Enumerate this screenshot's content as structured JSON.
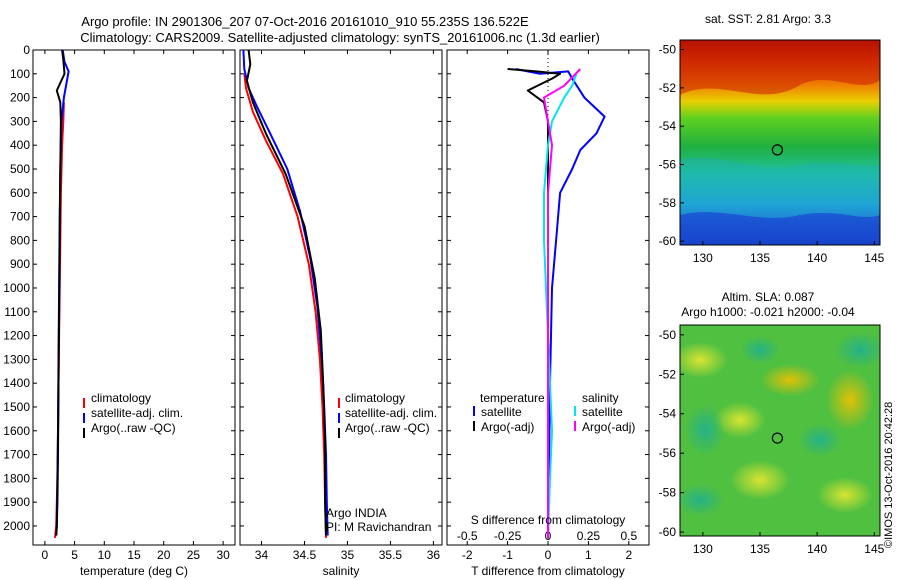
{
  "header": {
    "title_line1": "Argo profile: IN 2901306_207 07-Oct-2016 20161010_910 55.235S 136.522E",
    "title_line2": "Climatology: CARS2009. Satellite-adjusted climatology: synTS_20161006.nc (1.3d earlier)"
  },
  "credit": "©IMOS 13-Oct-2016 20:42:28",
  "colors": {
    "climatology": "#ff0000",
    "satellite": "#0000ff",
    "argo": "#000000",
    "salinity_satellite": "#00e5ee",
    "salinity_argo": "#ff00ff"
  },
  "chart_data": [
    {
      "id": "temperature",
      "type": "line",
      "xlabel": "temperature (deg C)",
      "xlim": [
        -2,
        32
      ],
      "xticks": [
        0,
        5,
        10,
        15,
        20,
        25,
        30
      ],
      "ylim": [
        0,
        2080
      ],
      "yticks": [
        0,
        100,
        200,
        300,
        400,
        500,
        600,
        700,
        800,
        900,
        1000,
        1100,
        1200,
        1300,
        1400,
        1500,
        1600,
        1700,
        1800,
        1900,
        2000
      ],
      "legend": [
        {
          "label": "climatology",
          "color": "#ff0000"
        },
        {
          "label": "satellite-adj. clim.",
          "color": "#0000ff"
        },
        {
          "label": "Argo(..raw -QC)",
          "color": "#000000"
        }
      ],
      "series": [
        {
          "name": "climatology",
          "color": "#ff0000",
          "x": [
            3.2,
            3.1,
            2.9,
            2.7,
            2.6,
            2.5,
            2.4,
            2.3,
            2.2,
            2.1,
            2.0,
            1.9,
            1.7
          ],
          "y": [
            220,
            300,
            400,
            600,
            800,
            1000,
            1200,
            1400,
            1600,
            1800,
            1900,
            2000,
            2050
          ]
        },
        {
          "name": "satellite-adj. clim.",
          "color": "#0000ff",
          "x": [
            3.0,
            3.3,
            4.0,
            3.2,
            2.8,
            2.6,
            2.5,
            2.4,
            2.3,
            2.2,
            2.1,
            2.0,
            1.9
          ],
          "y": [
            0,
            50,
            90,
            200,
            300,
            500,
            700,
            1000,
            1300,
            1600,
            1800,
            2000,
            2040
          ]
        },
        {
          "name": "Argo(..raw -QC)",
          "color": "#000000",
          "x": [
            2.9,
            3.1,
            3.3,
            2.0,
            2.6,
            2.7,
            2.6,
            2.5,
            2.4,
            2.3,
            2.2,
            2.1,
            2.0,
            1.9
          ],
          "y": [
            0,
            40,
            100,
            170,
            220,
            300,
            500,
            800,
            1100,
            1400,
            1700,
            1900,
            2000,
            2040
          ]
        }
      ]
    },
    {
      "id": "salinity",
      "type": "line",
      "xlabel": "salinity",
      "xlim": [
        33.75,
        36.1
      ],
      "xticks": [
        34,
        34.5,
        35,
        35.5,
        36
      ],
      "ylim": [
        0,
        2080
      ],
      "legend": [
        {
          "label": "climatology",
          "color": "#ff0000"
        },
        {
          "label": "satellite-adj. clim.",
          "color": "#0000ff"
        },
        {
          "label": "Argo(..raw -QC)",
          "color": "#000000"
        }
      ],
      "annotations": [
        "Argo INDIA",
        "PI: M Ravichandran"
      ],
      "series": [
        {
          "name": "climatology",
          "color": "#ff0000",
          "x": [
            33.8,
            33.82,
            33.9,
            34.05,
            34.25,
            34.42,
            34.55,
            34.63,
            34.68,
            34.71,
            34.73,
            34.74,
            34.75
          ],
          "y": [
            100,
            160,
            260,
            380,
            520,
            700,
            900,
            1100,
            1300,
            1500,
            1700,
            1900,
            2050
          ]
        },
        {
          "name": "satellite-adj. clim.",
          "color": "#0000ff",
          "x": [
            33.79,
            33.8,
            33.85,
            33.95,
            34.1,
            34.3,
            34.45,
            34.57,
            34.65,
            34.7,
            34.73,
            34.75,
            34.76,
            34.77
          ],
          "y": [
            0,
            80,
            160,
            240,
            350,
            500,
            680,
            880,
            1080,
            1300,
            1500,
            1700,
            1900,
            2040
          ]
        },
        {
          "name": "Argo(..raw -QC)",
          "color": "#000000",
          "x": [
            33.85,
            33.87,
            33.83,
            33.9,
            34.05,
            34.28,
            34.5,
            34.62,
            34.69,
            34.72,
            34.74,
            34.74,
            34.75
          ],
          "y": [
            0,
            60,
            130,
            220,
            350,
            520,
            740,
            960,
            1180,
            1420,
            1660,
            1900,
            2040
          ]
        }
      ]
    },
    {
      "id": "difference",
      "type": "line",
      "xlabel": "T difference from climatology",
      "xlabel2": "S difference from climatology",
      "xlim": [
        -2.5,
        2.5
      ],
      "xticks_T": [
        -2,
        -1,
        0,
        1,
        2
      ],
      "xticks_S": [
        "-0.5",
        "-0.25",
        "0",
        "0.25",
        "0.5"
      ],
      "xticks_S_pos": [
        -2,
        -1,
        0,
        1,
        2
      ],
      "ylim": [
        0,
        2080
      ],
      "legend": {
        "temperature": {
          "title": "temperature",
          "items": [
            {
              "label": "satellite",
              "color": "#0000ff"
            },
            {
              "label": "Argo(-adj)",
              "color": "#000000"
            }
          ]
        },
        "salinity": {
          "title": "salinity",
          "items": [
            {
              "label": "satellite",
              "color": "#00e5ee"
            },
            {
              "label": "Argo(-adj)",
              "color": "#ff00ff"
            }
          ]
        }
      },
      "series": [
        {
          "name": "temperature satellite",
          "color": "#0000ff",
          "x": [
            -0.8,
            -0.2,
            0.5,
            0.6,
            0.9,
            1.4,
            1.2,
            0.8,
            0.6,
            0.3,
            0.2,
            0.1,
            0.05,
            0.02,
            0.0
          ],
          "y": [
            80,
            100,
            90,
            120,
            200,
            280,
            350,
            420,
            500,
            600,
            800,
            1000,
            1400,
            1800,
            2050
          ]
        },
        {
          "name": "temperature Argo(-adj)",
          "color": "#000000",
          "x": [
            -1.0,
            -0.3,
            0.3,
            0.1,
            -0.5,
            -0.1,
            0.0,
            0.0,
            0.0,
            0.0
          ],
          "y": [
            80,
            90,
            100,
            120,
            170,
            220,
            300,
            600,
            1200,
            2050
          ]
        },
        {
          "name": "salinity satellite",
          "color": "#00e5ee",
          "x": [
            0.7,
            0.6,
            0.4,
            0.1,
            0.0,
            -0.1,
            -0.1,
            -0.05,
            0.0,
            0.05,
            0.1,
            0.05,
            0.0
          ],
          "y": [
            100,
            150,
            200,
            300,
            400,
            600,
            800,
            1000,
            1200,
            1400,
            1600,
            1800,
            2050
          ]
        },
        {
          "name": "salinity Argo(-adj)",
          "color": "#ff00ff",
          "x": [
            0.8,
            0.4,
            -0.1,
            0.0,
            0.1,
            0.0,
            0.0
          ],
          "y": [
            80,
            150,
            200,
            300,
            400,
            600,
            2050
          ]
        }
      ]
    },
    {
      "id": "sst_map",
      "type": "heatmap",
      "title": "sat. SST: 2.81  Argo: 3.3",
      "xlim": [
        128,
        145.5
      ],
      "ylim": [
        -60.2,
        -49.5
      ],
      "xticks": [
        130,
        135,
        140,
        145
      ],
      "yticks": [
        -50,
        -52,
        -54,
        -56,
        -58,
        -60
      ],
      "marker": {
        "lon": 136.522,
        "lat": -55.235
      }
    },
    {
      "id": "sla_map",
      "type": "heatmap",
      "title": "Altim. SLA: 0.087",
      "subtitle": "Argo h1000: -0.021  h2000: -0.04",
      "xlim": [
        128,
        145.5
      ],
      "ylim": [
        -60.2,
        -49.5
      ],
      "xticks": [
        130,
        135,
        140,
        145
      ],
      "yticks": [
        -50,
        -52,
        -54,
        -56,
        -58,
        -60
      ],
      "marker": {
        "lon": 136.522,
        "lat": -55.235
      }
    }
  ]
}
